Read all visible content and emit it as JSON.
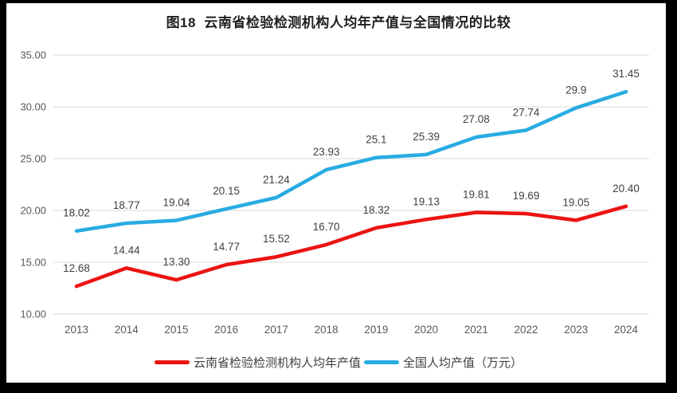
{
  "chart_data": {
    "type": "line",
    "title": "图18  云南省检验检测机构人均年产值与全国情况的比较",
    "categories": [
      "2013",
      "2014",
      "2015",
      "2016",
      "2017",
      "2018",
      "2019",
      "2020",
      "2021",
      "2022",
      "2023",
      "2024"
    ],
    "series": [
      {
        "id": "yunnan",
        "name": "云南省检验检测机构人均年产值",
        "color": "#ec1313",
        "values": [
          12.68,
          14.44,
          13.3,
          14.77,
          15.52,
          16.7,
          18.32,
          19.13,
          19.81,
          19.69,
          19.05,
          20.4
        ],
        "labels": [
          "12.68",
          "14.44",
          "13.30",
          "14.77",
          "15.52",
          "16.70",
          "18.32",
          "19.13",
          "19.81",
          "19.69",
          "19.05",
          "20.40"
        ]
      },
      {
        "id": "national",
        "name": "全国人均产值（万元）",
        "color": "#29abe2",
        "values": [
          18.02,
          18.77,
          19.04,
          20.15,
          21.24,
          23.93,
          25.1,
          25.39,
          27.08,
          27.74,
          29.9,
          31.45
        ],
        "labels": [
          "18.02",
          "18.77",
          "19.04",
          "20.15",
          "21.24",
          "23.93",
          "25.1",
          "25.39",
          "27.08",
          "27.74",
          "29.9",
          "31.45"
        ]
      }
    ],
    "y_axis": {
      "min": 10,
      "max": 35,
      "step": 5,
      "tick_labels": [
        "10.00",
        "15.00",
        "20.00",
        "25.00",
        "30.00",
        "35.00"
      ]
    },
    "x_axis": {
      "tick_labels": [
        "2013",
        "2014",
        "2015",
        "2016",
        "2017",
        "2018",
        "2019",
        "2020",
        "2021",
        "2022",
        "2023",
        "2024"
      ]
    },
    "grid": true,
    "legend_position": "bottom",
    "colors": {
      "gridline": "#d9d9d9",
      "axis_text": "#595959",
      "data_label_text": "#404040",
      "frame": "#000000",
      "background": "#ffffff"
    }
  }
}
